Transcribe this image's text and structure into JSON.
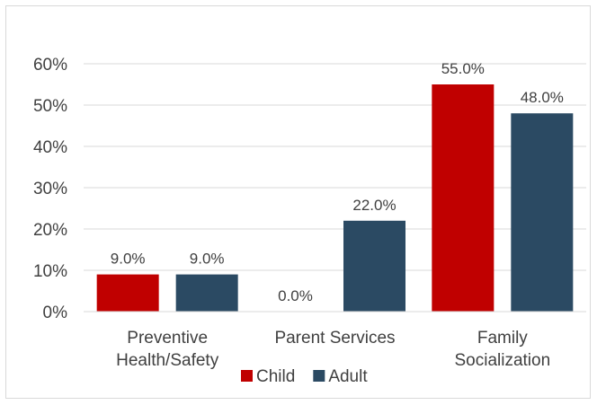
{
  "chart_data": {
    "type": "bar",
    "categories": [
      [
        "Preventive",
        "Health/Safety"
      ],
      [
        "Parent Services"
      ],
      [
        "Family",
        "Socialization"
      ]
    ],
    "series": [
      {
        "name": "Child",
        "color": "#c00000",
        "values": [
          9.0,
          0.0,
          55.0
        ],
        "labels": [
          "9.0%",
          "0.0%",
          "55.0%"
        ]
      },
      {
        "name": "Adult",
        "color": "#2b4a63",
        "values": [
          9.0,
          22.0,
          48.0
        ],
        "labels": [
          "9.0%",
          "22.0%",
          "48.0%"
        ]
      }
    ],
    "ylim": [
      0,
      60
    ],
    "yticks": [
      "0%",
      "10%",
      "20%",
      "30%",
      "40%",
      "50%",
      "60%"
    ],
    "title": "",
    "xlabel": "",
    "ylabel": "",
    "grid": true,
    "legend_position": "bottom"
  }
}
